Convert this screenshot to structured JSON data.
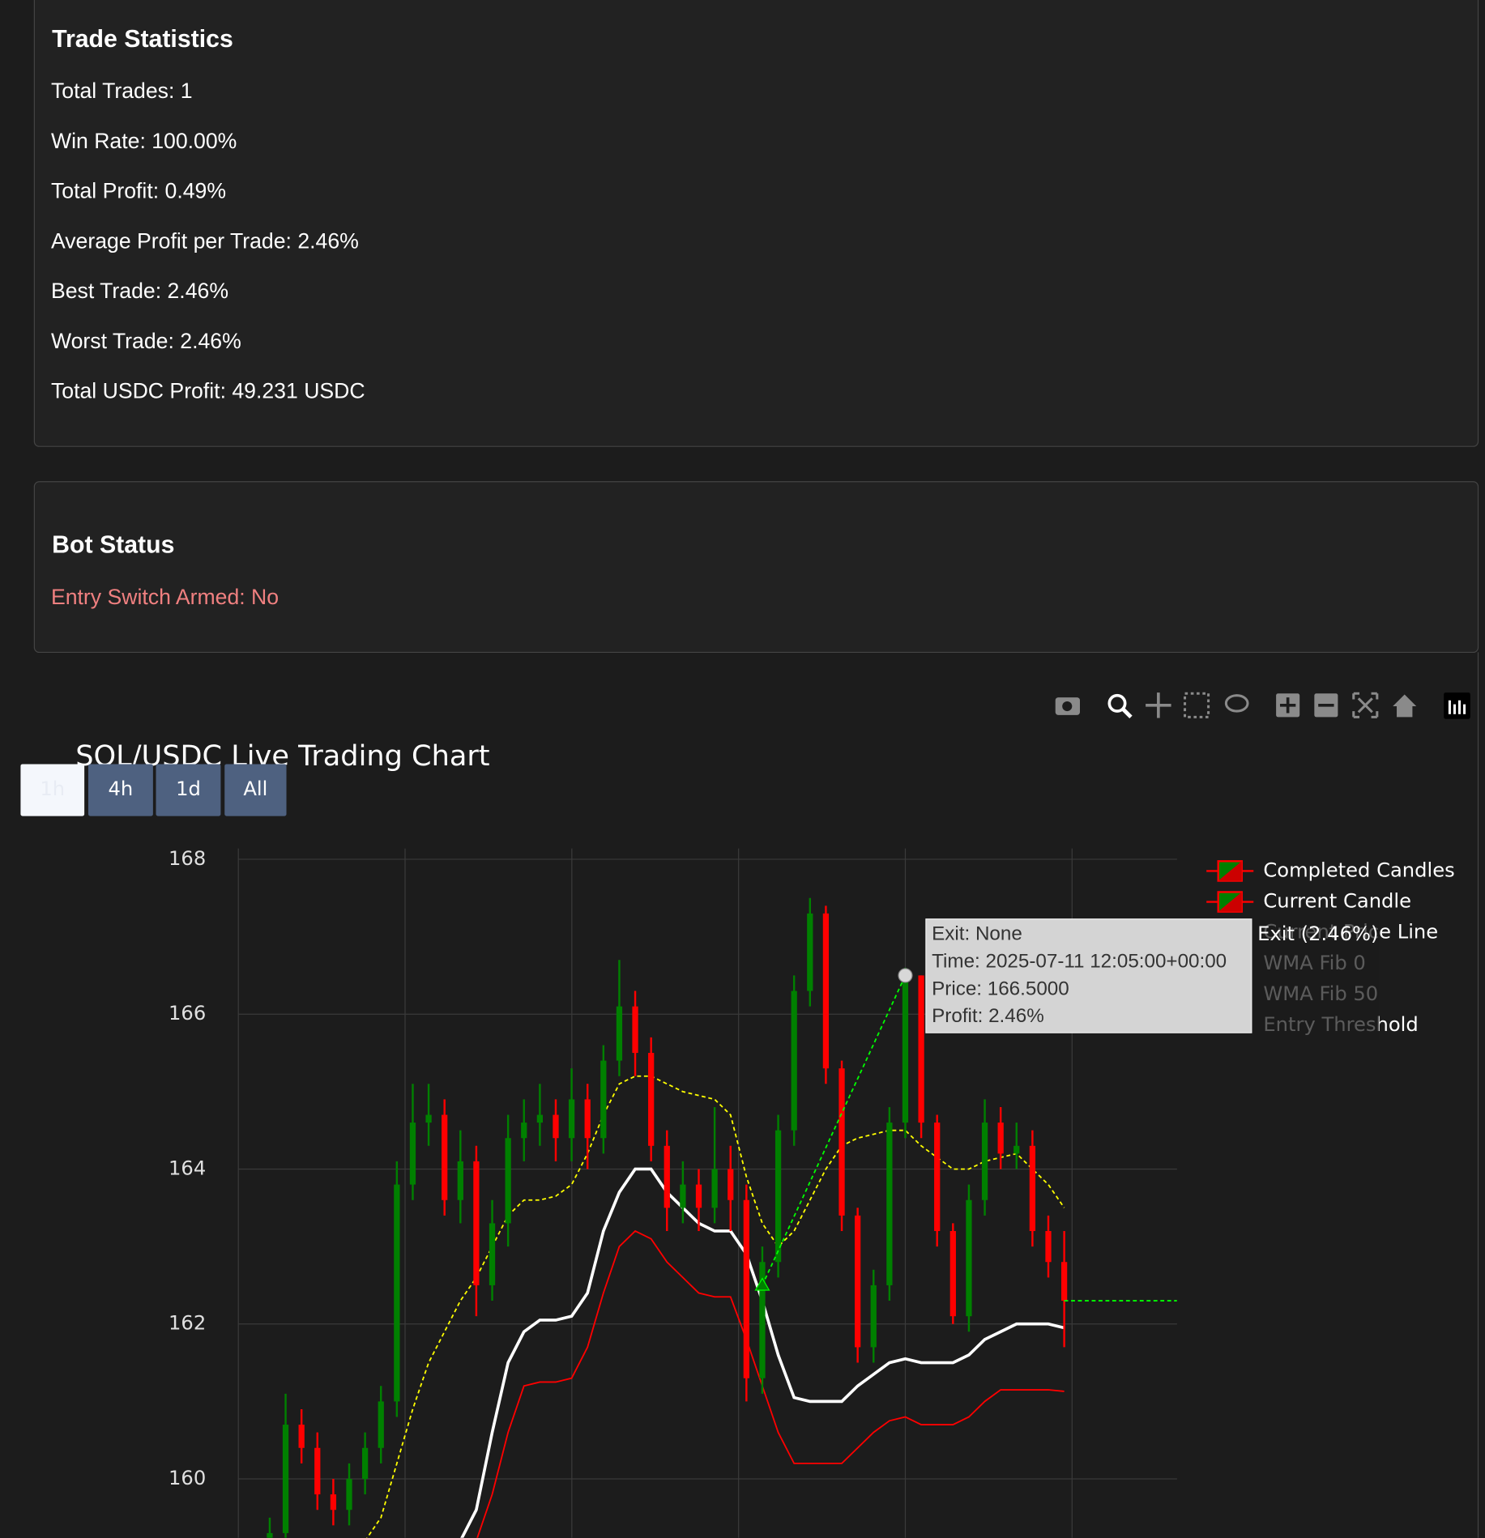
{
  "stats": {
    "title": "Trade Statistics",
    "items": [
      "Total Trades: 1",
      "Win Rate: 100.00%",
      "Total Profit: 0.49%",
      "Average Profit per Trade: 2.46%",
      "Best Trade: 2.46%",
      "Worst Trade: 2.46%",
      "Total USDC Profit: 49.231 USDC"
    ]
  },
  "status": {
    "title": "Bot Status",
    "items": [
      "Entry Switch Armed: No"
    ]
  },
  "chart_data": {
    "type": "candlestick",
    "title": "SOL/USDC Live Trading Chart",
    "range_buttons": [
      "1h",
      "4h",
      "1d",
      "All"
    ],
    "ylim": [
      159.24,
      168.14
    ],
    "yticks": [
      160,
      162,
      164,
      166,
      168
    ],
    "grid": true,
    "candles": {
      "name": "Completed Candles",
      "increasing_color": "#008000",
      "decreasing_color": "#ff0000",
      "open": [
        159.0,
        159.3,
        160.7,
        160.4,
        159.8,
        159.6,
        160.0,
        160.4,
        161.0,
        163.8,
        164.6,
        164.7,
        163.6,
        164.1,
        162.5,
        163.3,
        164.4,
        164.6,
        164.7,
        164.4,
        164.9,
        164.4,
        165.4,
        166.1,
        165.5,
        164.3,
        163.5,
        163.8,
        163.5,
        164.0,
        163.6,
        161.3,
        162.8,
        164.5,
        166.3,
        167.3,
        165.3,
        163.4,
        161.7,
        162.5,
        164.6,
        166.5,
        164.6,
        163.2,
        162.1,
        163.6,
        164.6,
        164.2,
        164.3,
        163.2
      ],
      "high": [
        159.5,
        161.1,
        160.9,
        160.6,
        160.0,
        160.2,
        160.6,
        161.2,
        164.1,
        165.1,
        165.1,
        164.9,
        164.5,
        164.3,
        163.6,
        164.7,
        164.9,
        165.1,
        164.9,
        165.3,
        165.1,
        165.6,
        166.7,
        166.3,
        165.7,
        164.5,
        164.1,
        164.0,
        164.8,
        164.3,
        163.8,
        163.0,
        164.7,
        166.5,
        167.5,
        167.4,
        165.4,
        163.5,
        162.7,
        164.8,
        166.6,
        166.5,
        164.7,
        163.3,
        163.8,
        164.9,
        164.8,
        164.6,
        164.5,
        163.4
      ],
      "low": [
        158.8,
        159.1,
        160.2,
        159.6,
        159.4,
        159.4,
        159.8,
        160.2,
        160.8,
        163.6,
        164.3,
        163.4,
        163.3,
        162.1,
        162.3,
        163.0,
        164.1,
        164.3,
        164.1,
        164.1,
        164.0,
        164.2,
        165.2,
        165.2,
        164.1,
        163.2,
        163.3,
        163.2,
        163.3,
        163.2,
        161.0,
        161.1,
        162.6,
        164.3,
        166.1,
        165.1,
        163.2,
        161.5,
        161.5,
        162.3,
        164.4,
        164.4,
        163.0,
        162.0,
        161.9,
        163.4,
        164.0,
        164.0,
        163.0,
        162.6
      ],
      "close": [
        159.3,
        160.7,
        160.4,
        159.8,
        159.6,
        160.0,
        160.4,
        161.0,
        163.8,
        164.6,
        164.7,
        163.6,
        164.1,
        162.5,
        163.3,
        164.4,
        164.6,
        164.7,
        164.4,
        164.9,
        164.4,
        165.4,
        166.1,
        165.5,
        164.3,
        163.5,
        163.8,
        163.5,
        164.0,
        163.6,
        161.3,
        162.8,
        164.5,
        166.3,
        167.3,
        165.3,
        163.4,
        161.7,
        162.5,
        164.6,
        166.5,
        164.6,
        163.2,
        162.1,
        163.6,
        164.6,
        164.2,
        164.3,
        163.2,
        162.8
      ]
    },
    "current_candle": {
      "name": "Current Candle",
      "open": [
        162.8
      ],
      "high": [
        163.2
      ],
      "low": [
        161.7
      ],
      "close": [
        162.3
      ]
    },
    "current_price": {
      "name": "Current Price Line",
      "value": 162.3,
      "color": "#00ff00"
    },
    "series": [
      {
        "name": "WMA Fib 0",
        "color": "#ffffff",
        "dash": false,
        "values": [
          null,
          null,
          null,
          null,
          null,
          null,
          null,
          null,
          null,
          null,
          null,
          null,
          159.2,
          159.6,
          160.6,
          161.5,
          161.9,
          162.05,
          162.05,
          162.1,
          162.4,
          163.2,
          163.7,
          164.0,
          164.0,
          163.7,
          163.5,
          163.3,
          163.2,
          163.2,
          162.9,
          162.3,
          161.6,
          161.05,
          161.0,
          161.0,
          161.0,
          161.2,
          161.35,
          161.5,
          161.55,
          161.5,
          161.5,
          161.5,
          161.6,
          161.8,
          161.9,
          162.0,
          162.0,
          162.0,
          161.95
        ]
      },
      {
        "name": "WMA Fib 50",
        "color": "#ffff00",
        "dash": true,
        "values": [
          null,
          null,
          null,
          null,
          null,
          null,
          159.2,
          159.5,
          160.2,
          160.9,
          161.5,
          161.9,
          162.3,
          162.6,
          163.0,
          163.4,
          163.6,
          163.6,
          163.65,
          163.8,
          164.2,
          164.7,
          165.1,
          165.2,
          165.2,
          165.1,
          165.0,
          164.95,
          164.9,
          164.7,
          163.9,
          163.3,
          163.0,
          163.2,
          163.6,
          164.0,
          164.3,
          164.4,
          164.45,
          164.5,
          164.5,
          164.3,
          164.15,
          164.0,
          164.0,
          164.1,
          164.15,
          164.2,
          164.0,
          163.8,
          163.5
        ]
      },
      {
        "name": "Entry Threshold",
        "color": "#ff0000",
        "dash": false,
        "values": [
          null,
          null,
          null,
          null,
          null,
          null,
          null,
          null,
          null,
          null,
          null,
          null,
          null,
          159.2,
          159.8,
          160.6,
          161.2,
          161.25,
          161.25,
          161.3,
          161.7,
          162.4,
          163.0,
          163.2,
          163.1,
          162.8,
          162.6,
          162.4,
          162.35,
          162.35,
          161.8,
          161.2,
          160.6,
          160.2,
          160.2,
          160.2,
          160.2,
          160.4,
          160.6,
          160.75,
          160.8,
          160.7,
          160.7,
          160.7,
          160.8,
          161.0,
          161.15,
          161.15,
          161.15,
          161.15,
          161.13
        ]
      }
    ],
    "trade": {
      "entry_index": 31,
      "entry_price": 162.5,
      "exit_index": 40,
      "exit_price": 166.5,
      "color": "#00ff00"
    },
    "tooltip": {
      "lines": [
        "Exit: None",
        "Time: 2025-07-11 12:05:00+00:00",
        "Price: 166.5000",
        "Profit: 2.46%"
      ]
    },
    "exit_label": "Exit (2.46%)"
  }
}
